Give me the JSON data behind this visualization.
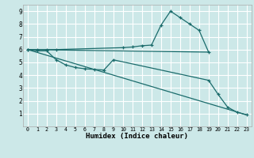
{
  "xlabel": "Humidex (Indice chaleur)",
  "xlim": [
    -0.5,
    23.5
  ],
  "ylim": [
    0,
    9.5
  ],
  "xticks": [
    0,
    1,
    2,
    3,
    4,
    5,
    6,
    7,
    8,
    9,
    10,
    11,
    12,
    13,
    14,
    15,
    16,
    17,
    18,
    19,
    20,
    21,
    22,
    23
  ],
  "yticks": [
    1,
    2,
    3,
    4,
    5,
    6,
    7,
    8,
    9
  ],
  "bg_color": "#cce8e8",
  "line_color": "#1a6b6b",
  "grid_color": "#ffffff",
  "line1_x": [
    0,
    1,
    2,
    3,
    4,
    5,
    6,
    7,
    8,
    9,
    19,
    20,
    21,
    22,
    23
  ],
  "line1_y": [
    6.0,
    5.9,
    5.9,
    5.2,
    4.8,
    4.6,
    4.5,
    4.45,
    4.4,
    5.2,
    3.6,
    2.5,
    1.5,
    1.1,
    0.9
  ],
  "line2_x": [
    0,
    1,
    2,
    3,
    10,
    11,
    12,
    13,
    14,
    15,
    16,
    17,
    18,
    19
  ],
  "line2_y": [
    6.0,
    6.0,
    6.0,
    6.0,
    6.15,
    6.2,
    6.3,
    6.35,
    7.9,
    9.0,
    8.5,
    8.0,
    7.5,
    5.8
  ],
  "line3_x": [
    0,
    19
  ],
  "line3_y": [
    6.0,
    5.8
  ],
  "line4_x": [
    0,
    23
  ],
  "line4_y": [
    6.0,
    0.9
  ]
}
